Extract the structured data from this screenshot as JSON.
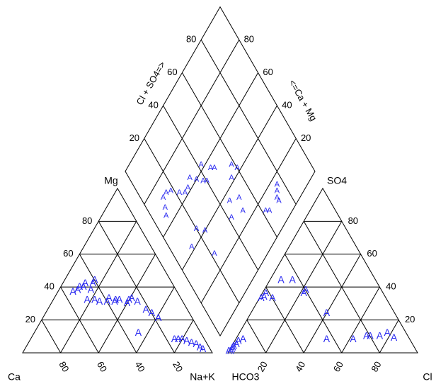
{
  "chart_data": {
    "type": "scatter",
    "subtype": "piper-trilinear",
    "title": "",
    "marker": "A",
    "marker_color": "#2a2af0",
    "cation_triangle": {
      "axis_labels": {
        "left": "Ca",
        "right": "Na+K",
        "top": "Mg"
      },
      "tick_labels_left_side": [
        "20",
        "40",
        "60",
        "80"
      ],
      "tick_labels_bottom": [
        "80",
        "60",
        "40",
        "20"
      ],
      "points_percent": [
        {
          "Ca": 55,
          "Mg": 37,
          "NaK": 8
        },
        {
          "Ca": 52,
          "Mg": 38,
          "NaK": 10
        },
        {
          "Ca": 50,
          "Mg": 40,
          "NaK": 10
        },
        {
          "Ca": 48,
          "Mg": 40,
          "NaK": 12
        },
        {
          "Ca": 46,
          "Mg": 42,
          "NaK": 12
        },
        {
          "Ca": 42,
          "Mg": 42,
          "NaK": 16
        },
        {
          "Ca": 45,
          "Mg": 38,
          "NaK": 17
        },
        {
          "Ca": 40,
          "Mg": 44,
          "NaK": 16
        },
        {
          "Ca": 50,
          "Mg": 32,
          "NaK": 18
        },
        {
          "Ca": 46,
          "Mg": 32,
          "NaK": 22
        },
        {
          "Ca": 44,
          "Mg": 31,
          "NaK": 25
        },
        {
          "Ca": 40,
          "Mg": 31,
          "NaK": 29
        },
        {
          "Ca": 38,
          "Mg": 33,
          "NaK": 29
        },
        {
          "Ca": 36,
          "Mg": 31,
          "NaK": 33
        },
        {
          "Ca": 35,
          "Mg": 32,
          "NaK": 33
        },
        {
          "Ca": 33,
          "Mg": 32,
          "NaK": 35
        },
        {
          "Ca": 30,
          "Mg": 30,
          "NaK": 40
        },
        {
          "Ca": 28,
          "Mg": 32,
          "NaK": 40
        },
        {
          "Ca": 26,
          "Mg": 33,
          "NaK": 41
        },
        {
          "Ca": 24,
          "Mg": 31,
          "NaK": 45
        },
        {
          "Ca": 22,
          "Mg": 26,
          "NaK": 52
        },
        {
          "Ca": 20,
          "Mg": 24,
          "NaK": 56
        },
        {
          "Ca": 18,
          "Mg": 21,
          "NaK": 61
        },
        {
          "Ca": 33,
          "Mg": 12,
          "NaK": 55
        },
        {
          "Ca": 16,
          "Mg": 8,
          "NaK": 76
        },
        {
          "Ca": 14,
          "Mg": 8,
          "NaK": 78
        },
        {
          "Ca": 12,
          "Mg": 8,
          "NaK": 80
        },
        {
          "Ca": 10,
          "Mg": 7,
          "NaK": 83
        },
        {
          "Ca": 8,
          "Mg": 6,
          "NaK": 86
        },
        {
          "Ca": 6,
          "Mg": 5,
          "NaK": 89
        },
        {
          "Ca": 5,
          "Mg": 3,
          "NaK": 92
        },
        {
          "Ca": 4,
          "Mg": 2,
          "NaK": 94
        }
      ]
    },
    "anion_triangle": {
      "axis_labels": {
        "left": "HCO3",
        "right": "Cl",
        "top": "SO4"
      },
      "tick_labels_bottom": [
        "20",
        "40",
        "60",
        "80"
      ],
      "tick_labels_right_side": [
        "20",
        "40",
        "60",
        "80"
      ],
      "points_percent": [
        {
          "HCO3": 99,
          "SO4": 1,
          "Cl": 0
        },
        {
          "HCO3": 98,
          "SO4": 1,
          "Cl": 1
        },
        {
          "HCO3": 97,
          "SO4": 2,
          "Cl": 1
        },
        {
          "HCO3": 96,
          "SO4": 3,
          "Cl": 1
        },
        {
          "HCO3": 95,
          "SO4": 4,
          "Cl": 1
        },
        {
          "HCO3": 93,
          "SO4": 5,
          "Cl": 2
        },
        {
          "HCO3": 91,
          "SO4": 7,
          "Cl": 2
        },
        {
          "HCO3": 88,
          "SO4": 8,
          "Cl": 4
        },
        {
          "HCO3": 66,
          "SO4": 33,
          "Cl": 1
        },
        {
          "HCO3": 64,
          "SO4": 34,
          "Cl": 2
        },
        {
          "HCO3": 62,
          "SO4": 36,
          "Cl": 2
        },
        {
          "HCO3": 60,
          "SO4": 33,
          "Cl": 7
        },
        {
          "HCO3": 50,
          "SO4": 44,
          "Cl": 6
        },
        {
          "HCO3": 44,
          "SO4": 44,
          "Cl": 12
        },
        {
          "HCO3": 42,
          "SO4": 36,
          "Cl": 22
        },
        {
          "HCO3": 40,
          "SO4": 38,
          "Cl": 22
        },
        {
          "HCO3": 36,
          "SO4": 24,
          "Cl": 40
        },
        {
          "HCO3": 44,
          "SO4": 8,
          "Cl": 48
        },
        {
          "HCO3": 30,
          "SO4": 8,
          "Cl": 62
        },
        {
          "HCO3": 22,
          "SO4": 10,
          "Cl": 68
        },
        {
          "HCO3": 20,
          "SO4": 10,
          "Cl": 70
        },
        {
          "HCO3": 15,
          "SO4": 10,
          "Cl": 75
        },
        {
          "HCO3": 10,
          "SO4": 12,
          "Cl": 78
        },
        {
          "HCO3": 8,
          "SO4": 9,
          "Cl": 83
        }
      ]
    },
    "diamond": {
      "axis_labels": {
        "upper_left": "Cl + SO4=>",
        "upper_right": "<=Ca + Mg"
      },
      "tick_labels_left": [
        "20",
        "40",
        "60",
        "80"
      ],
      "tick_labels_right": [
        "20",
        "40",
        "60",
        "80"
      ],
      "points_percent": [
        {
          "ClSO4": 60,
          "CaMg": 42
        },
        {
          "ClSO4": 58,
          "CaMg": 46
        },
        {
          "ClSO4": 48,
          "CaMg": 54
        },
        {
          "ClSO4": 46,
          "CaMg": 56
        },
        {
          "ClSO4": 54,
          "CaMg": 42
        },
        {
          "ClSO4": 40,
          "CaMg": 54
        },
        {
          "ClSO4": 38,
          "CaMg": 56
        },
        {
          "ClSO4": 42,
          "CaMg": 62
        },
        {
          "ClSO4": 35,
          "CaMg": 60
        },
        {
          "ClSO4": 32,
          "CaMg": 64
        },
        {
          "ClSO4": 28,
          "CaMg": 62
        },
        {
          "ClSO4": 25,
          "CaMg": 62
        },
        {
          "ClSO4": 22,
          "CaMg": 65
        },
        {
          "ClSO4": 18,
          "CaMg": 70
        },
        {
          "ClSO4": 15,
          "CaMg": 72
        },
        {
          "ClSO4": 12,
          "CaMg": 72
        },
        {
          "ClSO4": 10,
          "CaMg": 68
        },
        {
          "ClSO4": 8,
          "CaMg": 65
        },
        {
          "ClSO4": 20,
          "CaMg": 45
        },
        {
          "ClSO4": 24,
          "CaMg": 40
        },
        {
          "ClSO4": 76,
          "CaMg": 16
        },
        {
          "ClSO4": 74,
          "CaMg": 14
        },
        {
          "ClSO4": 72,
          "CaMg": 12
        },
        {
          "ClSO4": 72,
          "CaMg": 10
        },
        {
          "ClSO4": 64,
          "CaMg": 12
        },
        {
          "ClSO4": 62,
          "CaMg": 14
        },
        {
          "ClSO4": 52,
          "CaMg": 32
        },
        {
          "ClSO4": 46,
          "CaMg": 36
        },
        {
          "ClSO4": 50,
          "CaMg": 26
        },
        {
          "ClSO4": 42,
          "CaMg": 30
        },
        {
          "ClSO4": 22,
          "CaMg": 28
        },
        {
          "ClSO4": 12,
          "CaMg": 42
        }
      ]
    }
  }
}
